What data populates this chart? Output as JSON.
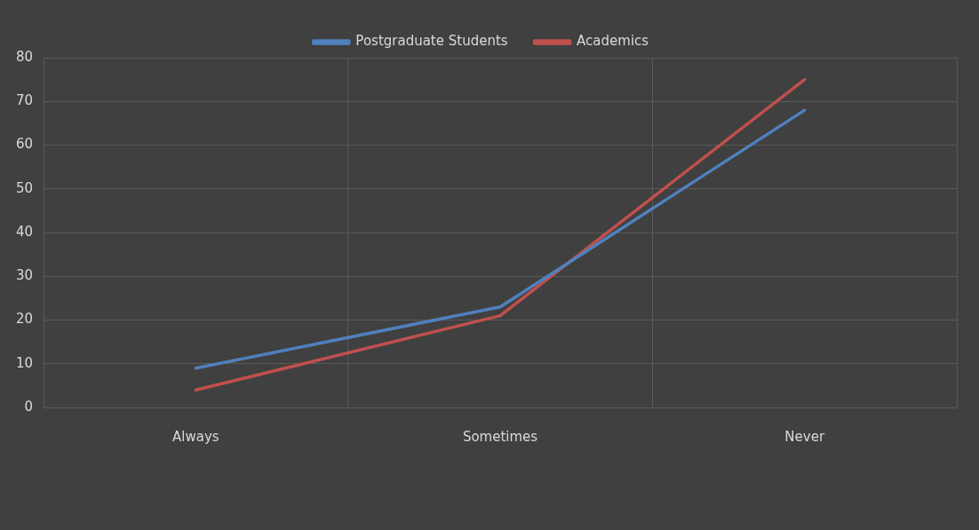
{
  "chart_data": {
    "type": "line",
    "categories": [
      "Always",
      "Sometimes",
      "Never"
    ],
    "series": [
      {
        "name": "Postgraduate Students",
        "color": "#4f81bd",
        "values": [
          9,
          23,
          68
        ]
      },
      {
        "name": "Academics",
        "color": "#c0504d",
        "values": [
          4,
          21,
          75
        ]
      }
    ],
    "ylim": [
      0,
      80
    ],
    "yticks": [
      0,
      10,
      20,
      30,
      40,
      50,
      60,
      70,
      80
    ],
    "grid": true,
    "legend": "top",
    "marker": "none",
    "line_style": "solid"
  }
}
